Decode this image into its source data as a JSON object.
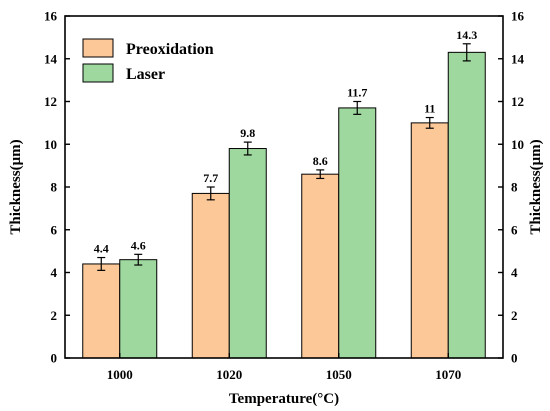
{
  "chart_data": {
    "type": "bar",
    "xlabel": "Temperature(°C)",
    "ylabel": "Thickness(μm)",
    "ylabel_right": "Thickness(μm)",
    "categories": [
      "1000",
      "1020",
      "1050",
      "1070"
    ],
    "ylim": [
      0,
      16
    ],
    "yticks": [
      0,
      2,
      4,
      6,
      8,
      10,
      12,
      14,
      16
    ],
    "legend_position": "top-left",
    "grid": false,
    "series": [
      {
        "name": "Preoxidation",
        "color": "#fcc898",
        "values": [
          4.4,
          7.7,
          8.6,
          11
        ],
        "errors": [
          0.3,
          0.3,
          0.2,
          0.25
        ],
        "labels": [
          "4.4",
          "7.7",
          "8.6",
          "11"
        ]
      },
      {
        "name": "Laser",
        "color": "#9fd89f",
        "values": [
          4.6,
          9.8,
          11.7,
          14.3
        ],
        "errors": [
          0.25,
          0.3,
          0.3,
          0.4
        ],
        "labels": [
          "4.6",
          "9.8",
          "11.7",
          "14.3"
        ]
      }
    ]
  }
}
